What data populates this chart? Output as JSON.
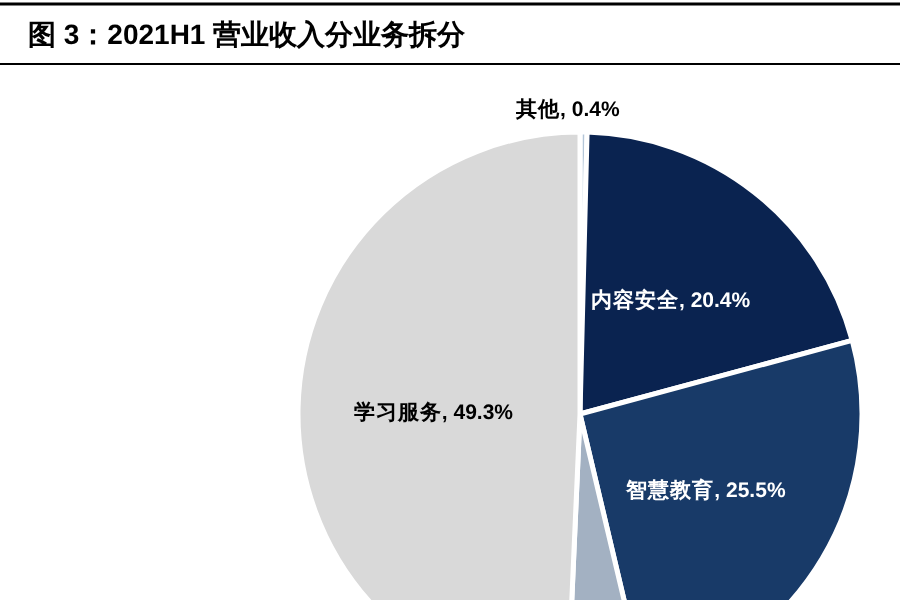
{
  "chart_data": {
    "type": "pie",
    "title": "图 3：2021H1 营业收入分业务拆分",
    "categories": [
      "其他",
      "内容安全",
      "智慧教育",
      null,
      "学习服务"
    ],
    "values": [
      0.4,
      20.4,
      25.5,
      4.4,
      49.3
    ],
    "colors": [
      "#b4c6d8",
      "#0a2350",
      "#183a68",
      "#a3b1c2",
      "#d9d9d9"
    ],
    "value_labels": [
      ", 0.4%",
      ", 20.4%",
      ", 25.5%",
      null,
      ", 49.3%"
    ]
  }
}
